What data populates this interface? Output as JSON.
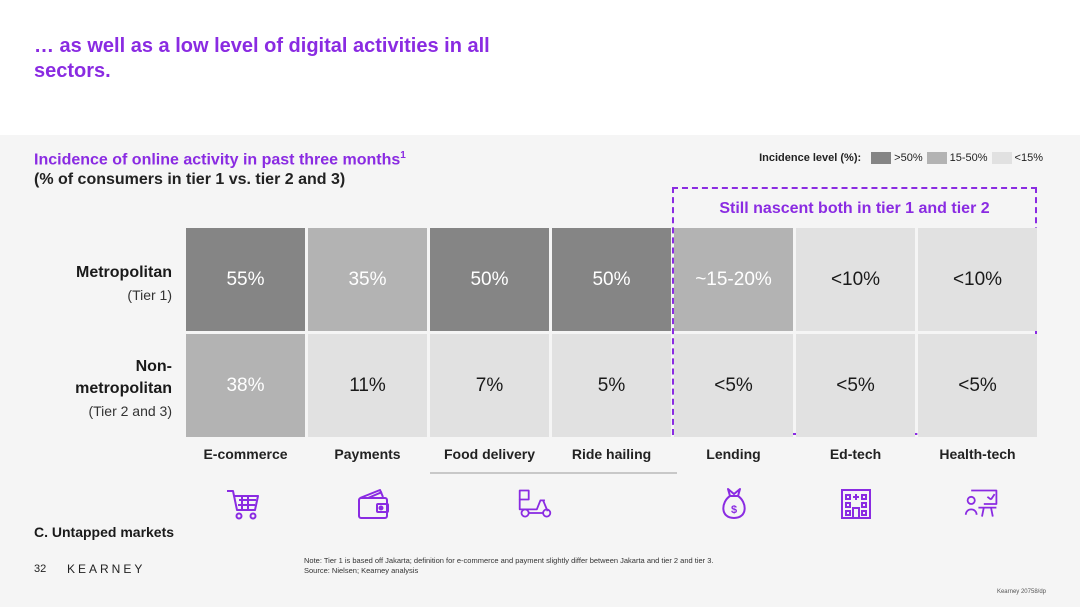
{
  "title": "… as well as a low level of digital activities in all sectors.",
  "subtitle": {
    "line1": "Incidence of online activity in past three months",
    "footnote_mark": "1",
    "line2": "(% of consumers in tier 1 vs. tier 2 and 3)"
  },
  "legend": {
    "title": "Incidence level (%):",
    "items": [
      {
        "label": ">50%",
        "color": "#858585"
      },
      {
        "label": "15-50%",
        "color": "#b3b3b3"
      },
      {
        "label": "<15%",
        "color": "#e1e1e1"
      }
    ]
  },
  "callout": "Still nascent both in tier 1 and tier 2",
  "chart_data": {
    "type": "heatmap",
    "title": "Incidence of online activity in past three months",
    "categories": [
      "E-commerce",
      "Payments",
      "Food delivery",
      "Ride hailing",
      "Lending",
      "Ed-tech",
      "Health-tech"
    ],
    "rows": [
      {
        "name": "Metropolitan",
        "sub": "(Tier 1)",
        "labels": [
          "55%",
          "35%",
          "50%",
          "50%",
          "~15-20%",
          "<10%",
          "<10%"
        ],
        "levels": [
          "high",
          "mid",
          "high",
          "high",
          "mid",
          "low",
          "low"
        ]
      },
      {
        "name": "Non-metropolitan",
        "sub": "(Tier 2 and 3)",
        "labels": [
          "38%",
          "11%",
          "7%",
          "5%",
          "<5%",
          "<5%",
          "<5%"
        ],
        "levels": [
          "mid",
          "low",
          "low",
          "low",
          "low",
          "low",
          "low"
        ]
      }
    ]
  },
  "icons": [
    "cart-icon",
    "wallet-icon",
    "delivery-scooter-icon",
    "money-bag-icon",
    "building-icon",
    "doctor-icon"
  ],
  "section_label": "C. Untapped markets",
  "page_number": "32",
  "logo": "KEARNEY",
  "note": "Note: Tier 1 is based off Jakarta; definition for e-commerce and payment slightly differ between Jakarta and tier 2 and tier 3.",
  "source": "Source: Nielsen; Kearney analysis",
  "reference": "Kearney 20758/dp"
}
